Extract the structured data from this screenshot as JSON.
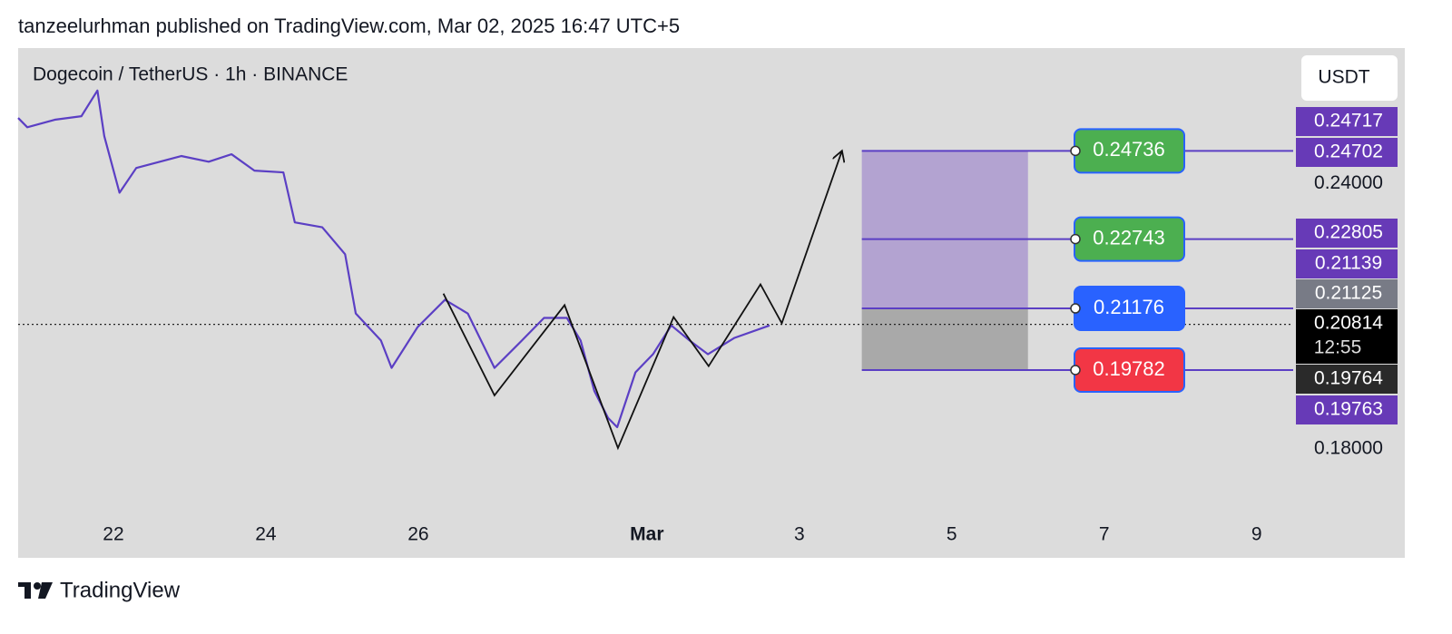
{
  "header": {
    "text": "tanzeelurhman published on TradingView.com, Mar 02, 2025 16:47 UTC+5"
  },
  "footer": {
    "brand": "TradingView"
  },
  "chart_data": {
    "type": "line",
    "title": "Dogecoin / TetherUS · 1h · BINANCE",
    "currency_button": "USDT",
    "x": [
      20.75,
      20.87,
      21.23,
      21.58,
      21.79,
      21.88,
      22.08,
      22.3,
      22.89,
      23.25,
      23.55,
      23.85,
      24.23,
      24.38,
      24.74,
      25.04,
      25.18,
      25.51,
      25.65,
      25.99,
      26.35,
      26.65,
      27.0,
      27.36,
      27.65,
      27.95,
      28.13,
      28.31,
      28.49,
      28.61,
      28.85,
      29.08,
      29.32,
      29.56,
      29.8,
      30.15,
      30.61
    ],
    "series": [
      {
        "color": "#5b3fc4",
        "values": [
          0.2548,
          0.2527,
          0.2544,
          0.2552,
          0.261,
          0.2507,
          0.2379,
          0.2435,
          0.2462,
          0.2449,
          0.2466,
          0.2429,
          0.2425,
          0.2312,
          0.2301,
          0.224,
          0.2106,
          0.2045,
          0.1983,
          0.2075,
          0.2137,
          0.2106,
          0.1983,
          0.2045,
          0.2096,
          0.2096,
          0.2045,
          0.1931,
          0.187,
          0.1849,
          0.1973,
          0.2014,
          0.2079,
          0.2045,
          0.2014,
          0.2051,
          0.2079
        ]
      }
    ],
    "drawing": {
      "color": "#111111",
      "x": [
        26.33,
        27.0,
        27.92,
        28.62,
        29.35,
        29.81,
        30.49,
        30.77,
        31.56
      ],
      "values": [
        0.2151,
        0.1921,
        0.2125,
        0.1802,
        0.2098,
        0.1987,
        0.2172,
        0.2084,
        0.2474
      ]
    },
    "xlim": [
      20.75,
      37.48
    ],
    "xticks": [
      22,
      24,
      26,
      {
        "value": 29,
        "label": "Mar"
      },
      {
        "value": 31,
        "label": "3"
      },
      {
        "value": 33,
        "label": "5"
      },
      {
        "value": 35,
        "label": "7"
      },
      {
        "value": 37,
        "label": "9"
      }
    ],
    "ylim": [
      0.1644,
      0.2706
    ],
    "yticks": [
      {
        "value": 0.24,
        "label": "0.24000"
      },
      {
        "value": 0.18,
        "label": "0.18000"
      }
    ],
    "current_price": 0.20814,
    "box_x": [
      31.82,
      34.0
    ],
    "boxes": [
      {
        "from": 0.24736,
        "to": 0.21176,
        "color": "#b3a3d1"
      },
      {
        "from": 0.21176,
        "to": 0.19782,
        "color": "#a9a9a9"
      }
    ],
    "levels": [
      {
        "value": 0.24736,
        "color": "#4caf50"
      },
      {
        "value": 0.22743,
        "color": "#4caf50"
      },
      {
        "value": 0.21176,
        "color": "#2962ff"
      },
      {
        "value": 0.19782,
        "color": "#f23645"
      }
    ],
    "level_line_color": "#5b3fc4",
    "price_labels": [
      {
        "value": 0.24717,
        "color": "#673ab7"
      },
      {
        "value": 0.24702,
        "color": "#673ab7"
      },
      {
        "value": 0.22805,
        "color": "#673ab7"
      },
      {
        "value": 0.21139,
        "color": "#673ab7"
      },
      {
        "value": 0.21125,
        "color": "#787b86"
      },
      {
        "value": 0.20814,
        "color": "#000000",
        "countdown": "12:55"
      },
      {
        "value": 0.19764,
        "color": "#2a2a2a"
      },
      {
        "value": 0.19763,
        "color": "#673ab7"
      }
    ]
  }
}
